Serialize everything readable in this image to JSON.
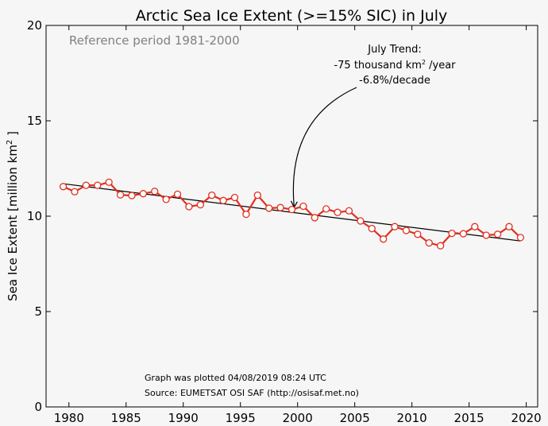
{
  "chart_data": {
    "type": "line",
    "title": "Arctic Sea Ice Extent (>=15% SIC) in July",
    "ylabel_prefix": "Sea Ice Extent [million km",
    "ylabel_sup": "2",
    "ylabel_suffix": " ]",
    "xlabel": "",
    "xlim": [
      1978,
      2021
    ],
    "ylim": [
      0,
      20
    ],
    "xticks": [
      1980,
      1985,
      1990,
      1995,
      2000,
      2005,
      2010,
      2015,
      2020
    ],
    "yticks": [
      0,
      5,
      10,
      15,
      20
    ],
    "reference_text": "Reference period 1981-2000",
    "trend_annotation": {
      "line1": "July Trend:",
      "line2_prefix": "-75 thousand km",
      "line2_sup": "2",
      "line2_suffix": " /year",
      "line3": "-6.8%/decade",
      "arrow_target": [
        1999.7,
        10.3
      ]
    },
    "trend_line": {
      "x": [
        1979.5,
        2019.5
      ],
      "y": [
        11.7,
        8.7
      ]
    },
    "series": [
      {
        "color": "#e03020",
        "x": [
          1979.5,
          1980.5,
          1981.5,
          1982.5,
          1983.5,
          1984.5,
          1985.5,
          1986.5,
          1987.5,
          1988.5,
          1989.5,
          1990.5,
          1991.5,
          1992.5,
          1993.5,
          1994.5,
          1995.5,
          1996.5,
          1997.5,
          1998.5,
          1999.5,
          2000.5,
          2001.5,
          2002.5,
          2003.5,
          2004.5,
          2005.5,
          2006.5,
          2007.5,
          2008.5,
          2009.5,
          2010.5,
          2011.5,
          2012.5,
          2013.5,
          2014.5,
          2015.5,
          2016.5,
          2017.5,
          2018.5,
          2019.5
        ],
        "y": [
          11.55,
          11.28,
          11.62,
          11.62,
          11.78,
          11.12,
          11.08,
          11.18,
          11.3,
          10.88,
          11.15,
          10.5,
          10.6,
          11.1,
          10.82,
          10.98,
          10.1,
          11.1,
          10.42,
          10.45,
          10.35,
          10.52,
          9.92,
          10.38,
          10.2,
          10.28,
          9.75,
          9.35,
          8.8,
          9.45,
          9.25,
          9.05,
          8.6,
          8.45,
          9.1,
          9.08,
          9.45,
          9.0,
          9.05,
          9.45,
          8.88
        ]
      }
    ],
    "grid": false
  },
  "footer": {
    "plotted": "Graph was plotted 04/08/2019 08:24 UTC",
    "source": "Source: EUMETSAT OSI SAF (http://osisaf.met.no)"
  }
}
